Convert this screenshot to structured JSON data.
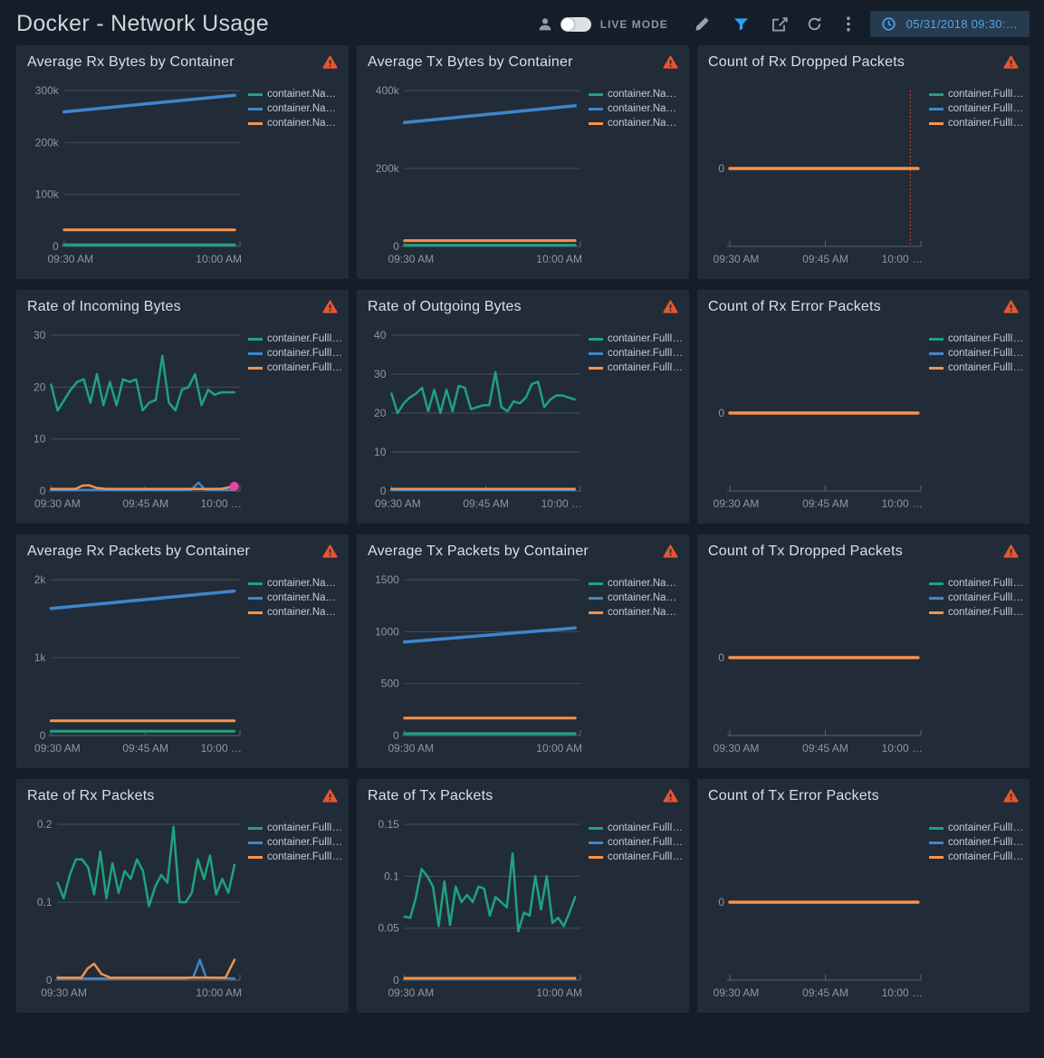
{
  "header": {
    "title": "Docker - Network Usage",
    "live_mode_label": "LIVE MODE",
    "live_mode_on": false,
    "time_range": "05/31/2018 09:30:…",
    "icons": [
      "user-icon",
      "live-mode-toggle",
      "pencil-icon",
      "filter-icon",
      "share-icon",
      "refresh-icon",
      "kebab-menu-icon",
      "clock-icon"
    ]
  },
  "colors": {
    "green": "#1fa27e",
    "blue": "#3f86c9",
    "orange": "#f7924a",
    "pink": "#ec3fa7",
    "warning": "#e5562f",
    "accent_blue": "#2aa3f2",
    "vline": "#cf4a2e",
    "grid": "#454f59",
    "axis": "#5a646e",
    "axis_text": "#8d97a1"
  },
  "chart_data": [
    {
      "type": "line",
      "title": "Average Rx Bytes by Container",
      "x_axis": {
        "labels": [
          "09:30 AM",
          "10:00 AM"
        ],
        "ticks": [
          0,
          1
        ]
      },
      "y_axis": {
        "ylim": [
          0,
          300000
        ],
        "ticks": [
          0,
          100000,
          200000,
          300000
        ],
        "labels": [
          "0",
          "100k",
          "200k",
          "300k"
        ]
      },
      "legend": [
        {
          "label": "container.Na…",
          "color": "green"
        },
        {
          "label": "container.Na…",
          "color": "blue"
        },
        {
          "label": "container.Na…",
          "color": "orange"
        }
      ],
      "series": [
        {
          "name": "green",
          "color": "green",
          "width": 3,
          "y": [
            3000,
            3000
          ]
        },
        {
          "name": "blue",
          "color": "blue",
          "width": 3.5,
          "y": [
            259000,
            291000
          ]
        },
        {
          "name": "orange",
          "color": "orange",
          "width": 3,
          "y": [
            32000,
            32000
          ]
        }
      ]
    },
    {
      "type": "line",
      "title": "Average Tx Bytes by Container",
      "x_axis": {
        "labels": [
          "09:30 AM",
          "10:00 AM"
        ],
        "ticks": [
          0,
          1
        ]
      },
      "y_axis": {
        "ylim": [
          0,
          400000
        ],
        "ticks": [
          0,
          200000,
          400000
        ],
        "labels": [
          "0",
          "200k",
          "400k"
        ]
      },
      "legend": [
        {
          "label": "container.Na…",
          "color": "green"
        },
        {
          "label": "container.Na…",
          "color": "blue"
        },
        {
          "label": "container.Na…",
          "color": "orange"
        }
      ],
      "series": [
        {
          "name": "green",
          "color": "green",
          "width": 3,
          "y": [
            3000,
            3000
          ]
        },
        {
          "name": "blue",
          "color": "blue",
          "width": 3.5,
          "y": [
            318000,
            361000
          ]
        },
        {
          "name": "orange",
          "color": "orange",
          "width": 3,
          "y": [
            15000,
            15000
          ]
        }
      ]
    },
    {
      "type": "line",
      "title": "Count of Rx Dropped Packets",
      "x_axis": {
        "labels": [
          "09:30 AM",
          "09:45 AM",
          "10:00 …"
        ],
        "ticks": [
          0,
          0.5,
          1
        ]
      },
      "y_axis": {
        "ylim": [
          -1,
          1
        ],
        "ticks": [
          0
        ],
        "labels": [
          "0"
        ]
      },
      "legend": [
        {
          "label": "container.FullI…",
          "color": "green"
        },
        {
          "label": "container.FullI…",
          "color": "blue"
        },
        {
          "label": "container.FullI…",
          "color": "orange"
        }
      ],
      "vline": {
        "x": 0.945
      },
      "series": [
        {
          "name": "green",
          "color": "green",
          "width": 3,
          "x": [
            0,
            0.985
          ],
          "y": [
            0,
            0
          ]
        },
        {
          "name": "blue",
          "color": "blue",
          "width": 3,
          "x": [
            0,
            0.985
          ],
          "y": [
            0,
            0
          ]
        },
        {
          "name": "orange",
          "color": "orange",
          "width": 3.5,
          "x": [
            0,
            0.985
          ],
          "y": [
            0,
            0
          ]
        }
      ]
    },
    {
      "type": "line",
      "title": "Rate of Incoming Bytes",
      "x_axis": {
        "labels": [
          "09:30 AM",
          "09:45 AM",
          "10:00 …"
        ],
        "ticks": [
          0,
          0.5,
          1
        ]
      },
      "y_axis": {
        "ylim": [
          0,
          30
        ],
        "ticks": [
          0,
          10,
          20,
          30
        ],
        "labels": [
          "0",
          "10",
          "20",
          "30"
        ]
      },
      "legend": [
        {
          "label": "container.FullI…",
          "color": "green"
        },
        {
          "label": "container.FullI…",
          "color": "blue"
        },
        {
          "label": "container.FullI…",
          "color": "orange"
        }
      ],
      "end_dot": {
        "x": 0.97,
        "y": 0.9
      },
      "series": [
        {
          "name": "green",
          "color": "green",
          "width": 2.5,
          "y": [
            20.5,
            15.5,
            17.5,
            19.5,
            21,
            21.5,
            17,
            22.5,
            16.5,
            21,
            16.5,
            21.5,
            21,
            21.5,
            15.5,
            17,
            17.5,
            26,
            17,
            15.5,
            19.5,
            20,
            22.5,
            16.5,
            19.5,
            18.5,
            19,
            19,
            19
          ]
        },
        {
          "name": "blue",
          "color": "blue",
          "width": 2.5,
          "x": [
            0,
            0.7,
            0.745,
            0.78,
            0.815,
            0.97
          ],
          "y": [
            0.2,
            0.2,
            0.3,
            1.6,
            0.3,
            0.2
          ]
        },
        {
          "name": "orange",
          "color": "orange",
          "width": 2.5,
          "x": [
            0,
            0.13,
            0.165,
            0.2,
            0.24,
            0.29,
            0.9,
            0.97
          ],
          "y": [
            0.4,
            0.4,
            1.0,
            1.1,
            0.6,
            0.4,
            0.4,
            0.9
          ]
        }
      ]
    },
    {
      "type": "line",
      "title": "Rate of Outgoing Bytes",
      "x_axis": {
        "labels": [
          "09:30 AM",
          "09:45 AM",
          "10:00 …"
        ],
        "ticks": [
          0,
          0.5,
          1
        ]
      },
      "y_axis": {
        "ylim": [
          0,
          40
        ],
        "ticks": [
          0,
          10,
          20,
          30,
          40
        ],
        "labels": [
          "0",
          "10",
          "20",
          "30",
          "40"
        ]
      },
      "legend": [
        {
          "label": "container.FullI…",
          "color": "green"
        },
        {
          "label": "container.FullI…",
          "color": "blue"
        },
        {
          "label": "container.FullI…",
          "color": "orange"
        }
      ],
      "series": [
        {
          "name": "blue",
          "color": "blue",
          "width": 2.5,
          "y": [
            0.3,
            0.3
          ]
        },
        {
          "name": "green",
          "color": "green",
          "width": 2.5,
          "y": [
            25,
            20,
            22.5,
            24,
            25,
            26.5,
            20.5,
            26,
            20,
            26,
            20.5,
            27,
            26.5,
            21,
            21.5,
            22,
            22,
            30.5,
            21.5,
            20.5,
            23,
            22.5,
            24,
            27.5,
            28,
            21.5,
            23.5,
            24.5,
            24.5,
            24,
            23.5
          ]
        },
        {
          "name": "orange",
          "color": "orange",
          "width": 2.5,
          "y": [
            0.5,
            0.5
          ]
        }
      ]
    },
    {
      "type": "line",
      "title": "Count of Rx Error Packets",
      "x_axis": {
        "labels": [
          "09:30 AM",
          "09:45 AM",
          "10:00 …"
        ],
        "ticks": [
          0,
          0.5,
          1
        ]
      },
      "y_axis": {
        "ylim": [
          -1,
          1
        ],
        "ticks": [
          0
        ],
        "labels": [
          "0"
        ]
      },
      "legend": [
        {
          "label": "container.FullI…",
          "color": "green"
        },
        {
          "label": "container.FullI…",
          "color": "blue"
        },
        {
          "label": "container.FullI…",
          "color": "orange"
        }
      ],
      "series": [
        {
          "name": "green",
          "color": "green",
          "width": 3,
          "x": [
            0,
            0.985
          ],
          "y": [
            0,
            0
          ]
        },
        {
          "name": "blue",
          "color": "blue",
          "width": 3,
          "x": [
            0,
            0.985
          ],
          "y": [
            0,
            0
          ]
        },
        {
          "name": "orange",
          "color": "orange",
          "width": 3.5,
          "x": [
            0,
            0.985
          ],
          "y": [
            0,
            0
          ]
        }
      ]
    },
    {
      "type": "line",
      "title": "Average Rx Packets by Container",
      "x_axis": {
        "labels": [
          "09:30 AM",
          "09:45 AM",
          "10:00 …"
        ],
        "ticks": [
          0,
          0.5,
          1
        ]
      },
      "y_axis": {
        "ylim": [
          0,
          2000
        ],
        "ticks": [
          0,
          1000,
          2000
        ],
        "labels": [
          "0",
          "1k",
          "2k"
        ]
      },
      "legend": [
        {
          "label": "container.Na…",
          "color": "green"
        },
        {
          "label": "container.Na…",
          "color": "blue"
        },
        {
          "label": "container.Na…",
          "color": "orange"
        }
      ],
      "series": [
        {
          "name": "green",
          "color": "green",
          "width": 3,
          "y": [
            55,
            55
          ]
        },
        {
          "name": "blue",
          "color": "blue",
          "width": 3.5,
          "y": [
            1630,
            1855
          ]
        },
        {
          "name": "orange",
          "color": "orange",
          "width": 3,
          "y": [
            190,
            190
          ]
        }
      ]
    },
    {
      "type": "line",
      "title": "Average Tx Packets by Container",
      "x_axis": {
        "labels": [
          "09:30 AM",
          "10:00 AM"
        ],
        "ticks": [
          0,
          1
        ]
      },
      "y_axis": {
        "ylim": [
          0,
          1500
        ],
        "ticks": [
          0,
          500,
          1000,
          1500
        ],
        "labels": [
          "0",
          "500",
          "1000",
          "1500"
        ]
      },
      "legend": [
        {
          "label": "container.Na…",
          "color": "green"
        },
        {
          "label": "container.Na…",
          "color": "blue"
        },
        {
          "label": "container.Na…",
          "color": "orange"
        }
      ],
      "series": [
        {
          "name": "green",
          "color": "green",
          "width": 3,
          "y": [
            18,
            18
          ]
        },
        {
          "name": "blue",
          "color": "blue",
          "width": 3.5,
          "y": [
            900,
            1035
          ]
        },
        {
          "name": "orange",
          "color": "orange",
          "width": 3,
          "y": [
            168,
            168
          ]
        }
      ]
    },
    {
      "type": "line",
      "title": "Count of Tx Dropped Packets",
      "x_axis": {
        "labels": [
          "09:30 AM",
          "09:45 AM",
          "10:00 …"
        ],
        "ticks": [
          0,
          0.5,
          1
        ]
      },
      "y_axis": {
        "ylim": [
          -1,
          1
        ],
        "ticks": [
          0
        ],
        "labels": [
          "0"
        ]
      },
      "legend": [
        {
          "label": "container.FullI…",
          "color": "green"
        },
        {
          "label": "container.FullI…",
          "color": "blue"
        },
        {
          "label": "container.FullI…",
          "color": "orange"
        }
      ],
      "series": [
        {
          "name": "green",
          "color": "green",
          "width": 3,
          "x": [
            0,
            0.985
          ],
          "y": [
            0,
            0
          ]
        },
        {
          "name": "blue",
          "color": "blue",
          "width": 3,
          "x": [
            0,
            0.985
          ],
          "y": [
            0,
            0
          ]
        },
        {
          "name": "orange",
          "color": "orange",
          "width": 3.5,
          "x": [
            0,
            0.985
          ],
          "y": [
            0,
            0
          ]
        }
      ]
    },
    {
      "type": "line",
      "title": "Rate of Rx Packets",
      "x_axis": {
        "labels": [
          "09:30 AM",
          "10:00 AM"
        ],
        "ticks": [
          0,
          1
        ]
      },
      "y_axis": {
        "ylim": [
          0,
          0.2
        ],
        "ticks": [
          0,
          0.1,
          0.2
        ],
        "labels": [
          "0",
          "0.1",
          "0.2"
        ]
      },
      "legend": [
        {
          "label": "container.FullI…",
          "color": "green"
        },
        {
          "label": "container.FullI…",
          "color": "blue"
        },
        {
          "label": "container.FullI…",
          "color": "orange"
        }
      ],
      "series": [
        {
          "name": "green",
          "color": "green",
          "width": 2.5,
          "y": [
            0.125,
            0.105,
            0.135,
            0.155,
            0.155,
            0.145,
            0.11,
            0.165,
            0.105,
            0.15,
            0.112,
            0.14,
            0.13,
            0.155,
            0.14,
            0.095,
            0.12,
            0.135,
            0.125,
            0.197,
            0.1,
            0.1,
            0.112,
            0.155,
            0.13,
            0.16,
            0.11,
            0.13,
            0.112,
            0.148
          ]
        },
        {
          "name": "blue",
          "color": "blue",
          "width": 2.5,
          "x": [
            0,
            0.7,
            0.745,
            0.78,
            0.815,
            0.97
          ],
          "y": [
            0.002,
            0.002,
            0.004,
            0.026,
            0.003,
            0.002
          ]
        },
        {
          "name": "orange",
          "color": "orange",
          "width": 2.5,
          "x": [
            0,
            0.13,
            0.165,
            0.2,
            0.24,
            0.29,
            0.92,
            0.97
          ],
          "y": [
            0.003,
            0.003,
            0.015,
            0.021,
            0.008,
            0.003,
            0.003,
            0.026
          ]
        }
      ]
    },
    {
      "type": "line",
      "title": "Rate of Tx Packets",
      "x_axis": {
        "labels": [
          "09:30 AM",
          "10:00 AM"
        ],
        "ticks": [
          0,
          1
        ]
      },
      "y_axis": {
        "ylim": [
          0,
          0.15
        ],
        "ticks": [
          0,
          0.05,
          0.1,
          0.15
        ],
        "labels": [
          "0",
          "0.05",
          "0.1",
          "0.15"
        ]
      },
      "legend": [
        {
          "label": "container.FullI…",
          "color": "green"
        },
        {
          "label": "container.FullI…",
          "color": "blue"
        },
        {
          "label": "container.FullI…",
          "color": "orange"
        }
      ],
      "series": [
        {
          "name": "blue",
          "color": "blue",
          "width": 2.5,
          "y": [
            0.001,
            0.001
          ]
        },
        {
          "name": "green",
          "color": "green",
          "width": 2.5,
          "y": [
            0.061,
            0.06,
            0.08,
            0.107,
            0.1,
            0.09,
            0.052,
            0.095,
            0.053,
            0.09,
            0.075,
            0.082,
            0.075,
            0.09,
            0.088,
            0.062,
            0.08,
            0.075,
            0.07,
            0.122,
            0.047,
            0.065,
            0.062,
            0.1,
            0.068,
            0.1,
            0.055,
            0.06,
            0.052,
            0.065,
            0.08
          ]
        },
        {
          "name": "orange",
          "color": "orange",
          "width": 2.5,
          "y": [
            0.002,
            0.002
          ]
        }
      ]
    },
    {
      "type": "line",
      "title": "Count of Tx Error Packets",
      "x_axis": {
        "labels": [
          "09:30 AM",
          "09:45 AM",
          "10:00 …"
        ],
        "ticks": [
          0,
          0.5,
          1
        ]
      },
      "y_axis": {
        "ylim": [
          -1,
          1
        ],
        "ticks": [
          0
        ],
        "labels": [
          "0"
        ]
      },
      "legend": [
        {
          "label": "container.FullI…",
          "color": "green"
        },
        {
          "label": "container.FullI…",
          "color": "blue"
        },
        {
          "label": "container.FullI…",
          "color": "orange"
        }
      ],
      "series": [
        {
          "name": "green",
          "color": "green",
          "width": 3,
          "x": [
            0,
            0.985
          ],
          "y": [
            0,
            0
          ]
        },
        {
          "name": "blue",
          "color": "blue",
          "width": 3,
          "x": [
            0,
            0.985
          ],
          "y": [
            0,
            0
          ]
        },
        {
          "name": "orange",
          "color": "orange",
          "width": 3.5,
          "x": [
            0,
            0.985
          ],
          "y": [
            0,
            0
          ]
        }
      ]
    }
  ]
}
